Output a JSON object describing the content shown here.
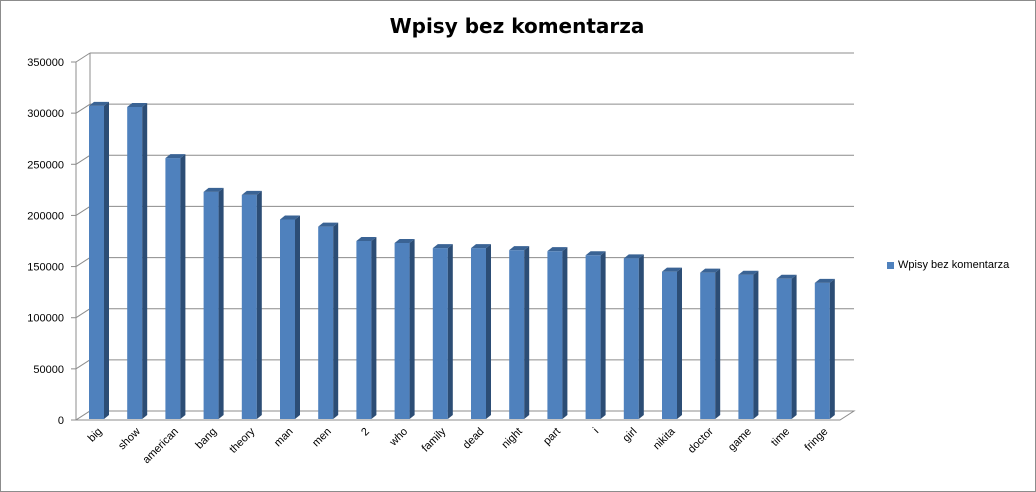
{
  "chart_data": {
    "type": "bar",
    "title": "Wpisy bez komentarza",
    "categories": [
      "big",
      "show",
      "american",
      "bang",
      "theory",
      "man",
      "men",
      "2",
      "who",
      "family",
      "dead",
      "night",
      "part",
      "i",
      "girl",
      "nikita",
      "doctor",
      "game",
      "time",
      "fringe"
    ],
    "series": [
      {
        "name": "Wpisy bez komentarza",
        "color": "#4f81bd",
        "values": [
          309000,
          308000,
          258000,
          225000,
          222000,
          198000,
          191000,
          177000,
          175000,
          170000,
          170000,
          168000,
          167000,
          163000,
          160000,
          147000,
          146000,
          144000,
          140000,
          136000
        ]
      }
    ],
    "ylim": [
      0,
      350000
    ],
    "yticks": [
      0,
      50000,
      100000,
      150000,
      200000,
      250000,
      300000,
      350000
    ],
    "grid": true,
    "legend_position": "right",
    "xlabel": "",
    "ylabel": ""
  }
}
